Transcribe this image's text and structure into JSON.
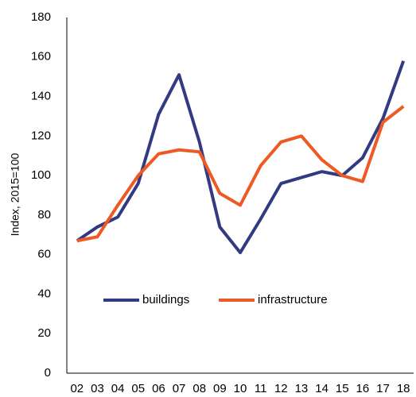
{
  "chart_data": {
    "type": "line",
    "y_label": "Index, 2015=100",
    "categories": [
      "02",
      "03",
      "04",
      "05",
      "06",
      "07",
      "08",
      "09",
      "10",
      "11",
      "12",
      "13",
      "14",
      "15",
      "16",
      "17",
      "18"
    ],
    "series": [
      {
        "name": "buildings",
        "color": "#323b82",
        "values": [
          67,
          74,
          79,
          96,
          131,
          151,
          117,
          74,
          61,
          78,
          96,
          99,
          102,
          100,
          109,
          129,
          158
        ]
      },
      {
        "name": "infrastructure",
        "color": "#ee5a24",
        "values": [
          67,
          69,
          85,
          100,
          111,
          113,
          112,
          91,
          85,
          105,
          117,
          120,
          108,
          100,
          97,
          127,
          135
        ]
      }
    ],
    "ylim": [
      0,
      180
    ],
    "yticks": [
      0,
      20,
      40,
      60,
      80,
      100,
      120,
      140,
      160,
      180
    ],
    "legend": "inside-bottom-center"
  }
}
